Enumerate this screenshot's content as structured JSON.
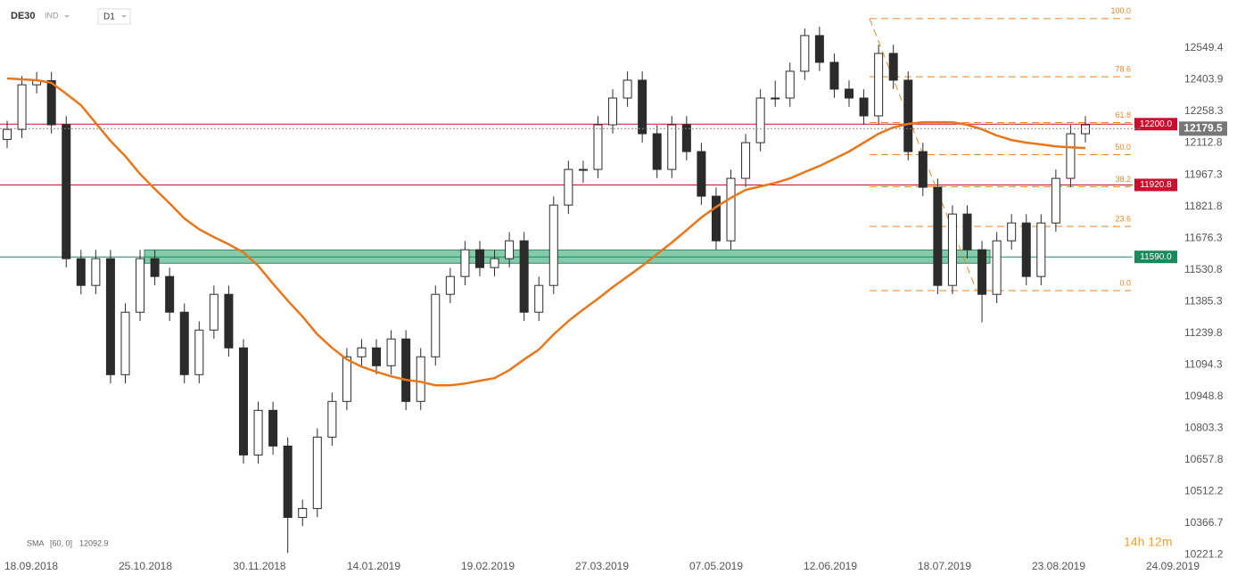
{
  "chart_data": {
    "type": "candlestick",
    "symbol": "DE30",
    "market": "IND",
    "interval": "D1",
    "open": [
      12130,
      12176,
      12381,
      12400,
      12197,
      11582,
      11459,
      11582,
      11049,
      11336,
      11582,
      11500,
      11336,
      11049,
      11254,
      11418,
      11172,
      10680,
      10885,
      10721,
      10393,
      10434,
      10762,
      10926,
      11131,
      11172,
      11090,
      11213,
      10926,
      11131,
      11418,
      11500,
      11623,
      11541,
      11582,
      11664,
      11336,
      11459,
      11828,
      11992,
      11992,
      12197,
      12320,
      12402,
      12156,
      11992,
      12197,
      12074,
      11869,
      11664,
      11951,
      12115,
      12320,
      12320,
      12443,
      12607,
      12484,
      12361,
      12320,
      12238,
      12525,
      12402,
      12074,
      11910,
      11459,
      11787,
      11623,
      11418,
      11664,
      11746,
      11500,
      11746,
      11951,
      12156
    ],
    "high": [
      12216,
      12421,
      12440,
      12440,
      12237,
      11622,
      11622,
      11622,
      11376,
      11622,
      11622,
      11540,
      11376,
      11294,
      11458,
      11458,
      11212,
      10925,
      10925,
      10761,
      10474,
      10802,
      10966,
      11171,
      11212,
      11212,
      11253,
      11253,
      11171,
      11458,
      11540,
      11663,
      11663,
      11622,
      11704,
      11704,
      11499,
      11868,
      12032,
      12032,
      12237,
      12360,
      12442,
      12442,
      12196,
      12237,
      12237,
      12114,
      11909,
      11991,
      12155,
      12360,
      12400,
      12483,
      12640,
      12647,
      12524,
      12401,
      12360,
      12565,
      12565,
      12442,
      12114,
      11950,
      11827,
      11827,
      11663,
      11704,
      11786,
      11786,
      11786,
      11991,
      12196,
      12237
    ],
    "low": [
      12090,
      12136,
      12341,
      12157,
      11542,
      11419,
      11419,
      11009,
      11009,
      11296,
      11460,
      11296,
      11009,
      11009,
      11214,
      11132,
      10640,
      10640,
      10681,
      10230,
      10353,
      10394,
      10722,
      10886,
      11091,
      11050,
      11050,
      10886,
      10886,
      11091,
      11378,
      11460,
      11501,
      11501,
      11542,
      11296,
      11296,
      11419,
      11788,
      11930,
      11952,
      12157,
      12280,
      12116,
      11952,
      11952,
      12034,
      11829,
      11624,
      11624,
      11911,
      12075,
      12280,
      12280,
      12403,
      12444,
      12321,
      12280,
      12198,
      12198,
      12362,
      12034,
      11870,
      11419,
      11419,
      11583,
      11290,
      11378,
      11624,
      11460,
      11460,
      11706,
      11911,
      12116
    ],
    "close": [
      12176,
      12381,
      12400,
      12197,
      11582,
      11459,
      11582,
      11049,
      11336,
      11582,
      11500,
      11336,
      11049,
      11254,
      11418,
      11172,
      10680,
      10885,
      10721,
      10393,
      10434,
      10762,
      10926,
      11131,
      11172,
      11090,
      11213,
      10926,
      11131,
      11418,
      11500,
      11623,
      11541,
      11582,
      11664,
      11336,
      11459,
      11828,
      11992,
      11992,
      12197,
      12320,
      12402,
      12156,
      11992,
      12197,
      12074,
      11869,
      11664,
      11951,
      12115,
      12320,
      12320,
      12443,
      12607,
      12484,
      12361,
      12320,
      12238,
      12525,
      12402,
      12074,
      11910,
      11459,
      11787,
      11623,
      11418,
      11664,
      11746,
      11500,
      11746,
      11951,
      12156,
      12197
    ],
    "sma": {
      "name": "SMA",
      "params": "[60, 0]",
      "last": 12092.9,
      "color": "#e8761b",
      "values": [
        12410,
        12406,
        12402,
        12390,
        12340,
        12287,
        12205,
        12123,
        12053,
        11971,
        11902,
        11836,
        11767,
        11717,
        11681,
        11648,
        11611,
        11549,
        11467,
        11389,
        11316,
        11234,
        11172,
        11119,
        11086,
        11062,
        11041,
        11025,
        11016,
        11000,
        11000,
        11008,
        11021,
        11033,
        11070,
        11119,
        11164,
        11234,
        11295,
        11348,
        11398,
        11451,
        11500,
        11549,
        11603,
        11656,
        11713,
        11771,
        11820,
        11861,
        11898,
        11914,
        11930,
        11951,
        11980,
        12008,
        12041,
        12074,
        12115,
        12156,
        12185,
        12201,
        12209,
        12209,
        12209,
        12197,
        12176,
        12148,
        12127,
        12115,
        12107,
        12098,
        12094,
        12090
      ]
    },
    "ylim": [
      10190,
      12750
    ],
    "yticks": [
      12549.4,
      12403.9,
      12258.3,
      12112.8,
      11967.3,
      11821.8,
      11676.3,
      11530.8,
      11385.3,
      11239.8,
      11094.3,
      10948.8,
      10803.3,
      10657.8,
      10512.2,
      10366.7,
      10221.2
    ],
    "x_labels": [
      "18.09.2018",
      "25.10.2018",
      "30.11.2018",
      "14.01.2019",
      "19.02.2019",
      "27.03.2019",
      "07.05.2019",
      "12.06.2019",
      "18.07.2019",
      "23.08.2019",
      "24.09.2019"
    ],
    "levels": [
      {
        "value": 12200,
        "label": "12200.0",
        "color": "#c8102e"
      },
      {
        "value": 11920.8,
        "label": "11920.8",
        "color": "#c8102e"
      },
      {
        "value": 11590,
        "label": "11590.0",
        "color": "#1a8a5a"
      }
    ],
    "zone": {
      "values": [
        11561,
        11622
      ],
      "color": "#5cb88f"
    },
    "current_price": 12179.5,
    "fib": {
      "high": 12685,
      "low": 11435,
      "color": "#e8862b",
      "levels": [
        {
          "value": 100,
          "label": "100.0"
        },
        78.6,
        61.8,
        {
          "value": 50,
          "label": "50.0"
        },
        38.2,
        23.6,
        {
          "value": 0,
          "label": "0.0"
        }
      ]
    },
    "timer": "14h 12m"
  }
}
